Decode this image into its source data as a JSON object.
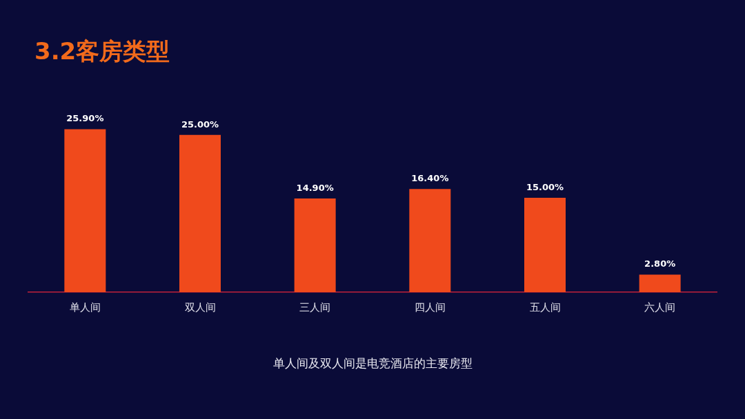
{
  "chart_data": {
    "type": "bar",
    "title": "3.2客房类型",
    "categories": [
      "单人间",
      "双人间",
      "三人间",
      "四人间",
      "五人间",
      "六人间"
    ],
    "values": [
      25.9,
      25.0,
      14.9,
      16.4,
      15.0,
      2.8
    ],
    "value_labels": [
      "25.90%",
      "25.00%",
      "14.90%",
      "16.40%",
      "15.00%",
      "2.80%"
    ],
    "color": "#f04a1c",
    "grid": false,
    "legend": false,
    "annotations": [
      "单人间及双人间是电竞酒店的主要房型"
    ]
  }
}
